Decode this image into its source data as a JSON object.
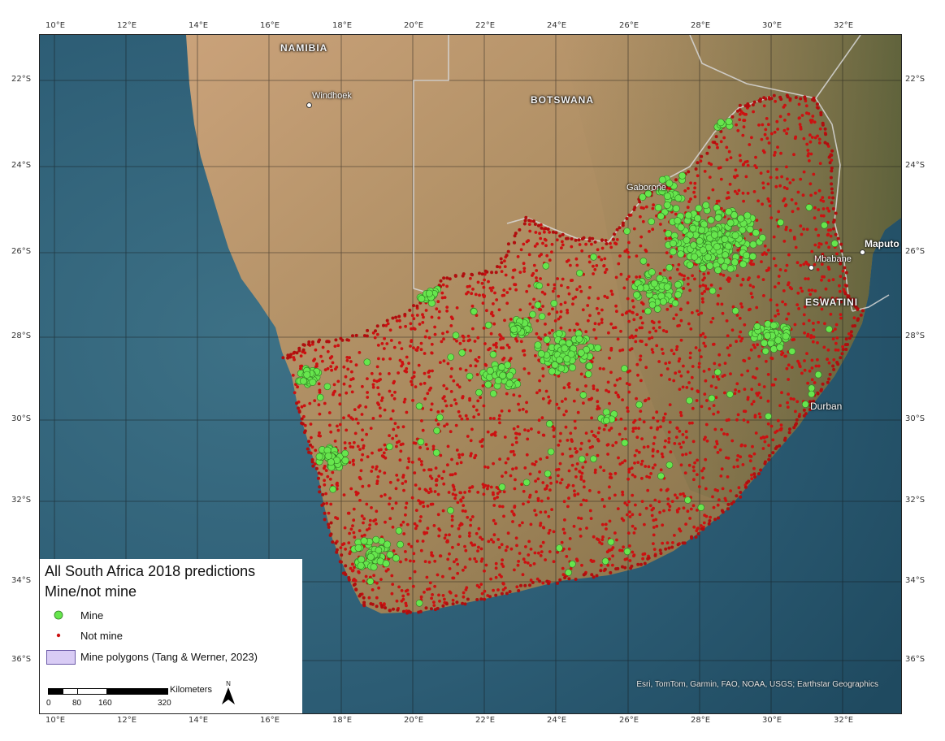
{
  "map": {
    "top_ticks": [
      "10°E",
      "12°E",
      "14°E",
      "16°E",
      "18°E",
      "20°E",
      "22°E",
      "24°E",
      "26°E",
      "28°E",
      "30°E",
      "32°E"
    ],
    "bottom_ticks": [
      "10°E",
      "12°E",
      "14°E",
      "16°E",
      "18°E",
      "20°E",
      "22°E",
      "24°E",
      "26°E",
      "28°E",
      "30°E",
      "32°E"
    ],
    "left_ticks": [
      "22°S",
      "24°S",
      "26°S",
      "28°S",
      "30°S",
      "32°S",
      "34°S",
      "36°S"
    ],
    "right_ticks": [
      "22°S",
      "24°S",
      "26°S",
      "28°S",
      "30°S",
      "32°S",
      "34°S",
      "36°S"
    ],
    "country_labels": {
      "namibia": "NAMIBIA",
      "botswana": "BOTSWANA",
      "eswatini": "ESWATINI"
    },
    "city_labels": {
      "windhoek": "Windhoek",
      "gaborone": "Gaborone",
      "maputo": "Maputo",
      "mbabane": "Mbabane",
      "durban": "Durban"
    },
    "attribution": "Esri, TomTom, Garmin, FAO, NOAA, USGS; Earthstar Geographics",
    "colors": {
      "ocean": "#2a5a72",
      "land": "#b08a60",
      "mine": "#66e64d",
      "not_mine": "#cc1111",
      "polygon_fill": "#d9ccf5",
      "polygon_border": "#6b5aa8"
    }
  },
  "legend": {
    "title": "All South Africa 2018 predictions",
    "subtitle": "Mine/not mine",
    "items": [
      {
        "label": "Mine"
      },
      {
        "label": "Not mine"
      },
      {
        "label": "Mine polygons (Tang & Werner, 2023)"
      }
    ],
    "scale": {
      "unit": "Kilometers",
      "labels": [
        "0",
        "80",
        "160",
        "320"
      ]
    },
    "north": "N"
  }
}
